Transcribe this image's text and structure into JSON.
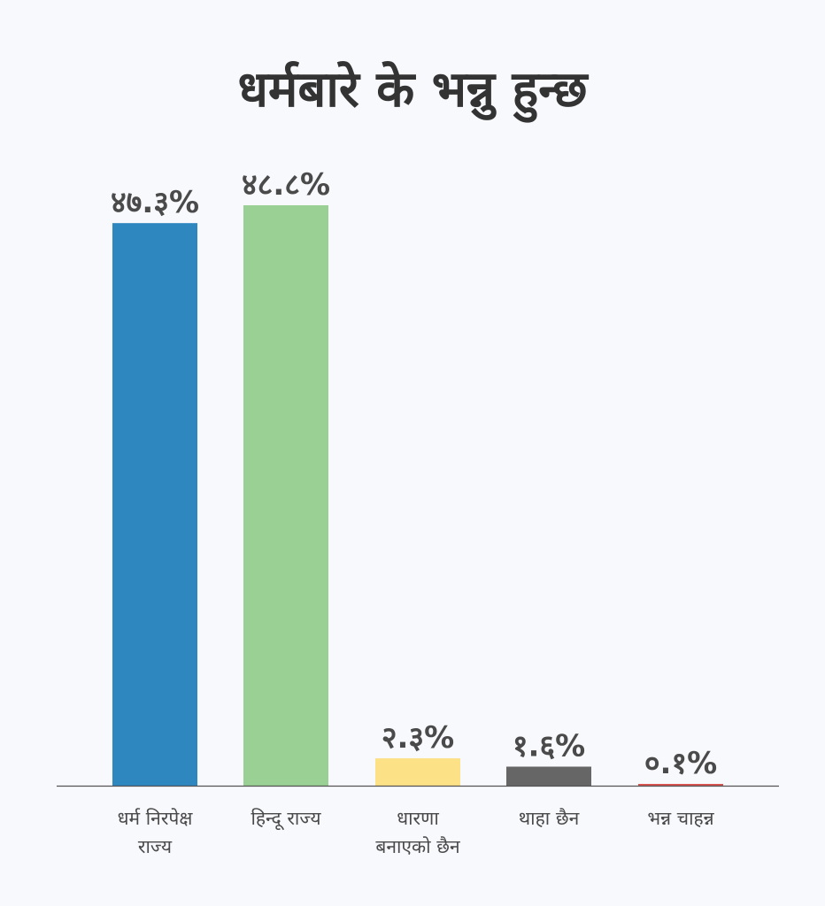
{
  "chart_data": {
    "type": "bar",
    "title": "धर्मबारे के भन्नु हुन्छ",
    "categories": [
      [
        "धर्म निरपेक्ष",
        "राज्य"
      ],
      [
        "हिन्दू राज्य"
      ],
      [
        "धारणा",
        "बनाएको छैन"
      ],
      [
        "थाहा छैन"
      ],
      [
        "भन्न चाहन्न"
      ]
    ],
    "values": [
      47.3,
      48.8,
      2.3,
      1.6,
      0.1
    ],
    "data_labels": [
      "४७.३%",
      "४८.८%",
      "२.३%",
      "१.६%",
      "०.१%"
    ],
    "colors": [
      "#2e87bf",
      "#9ad093",
      "#fde187",
      "#666666",
      "#d9534f"
    ],
    "axis_color": "#555555",
    "xlabel": "",
    "ylabel": "",
    "ylim": [
      0,
      48.8
    ],
    "grid": false,
    "legend": "none"
  }
}
